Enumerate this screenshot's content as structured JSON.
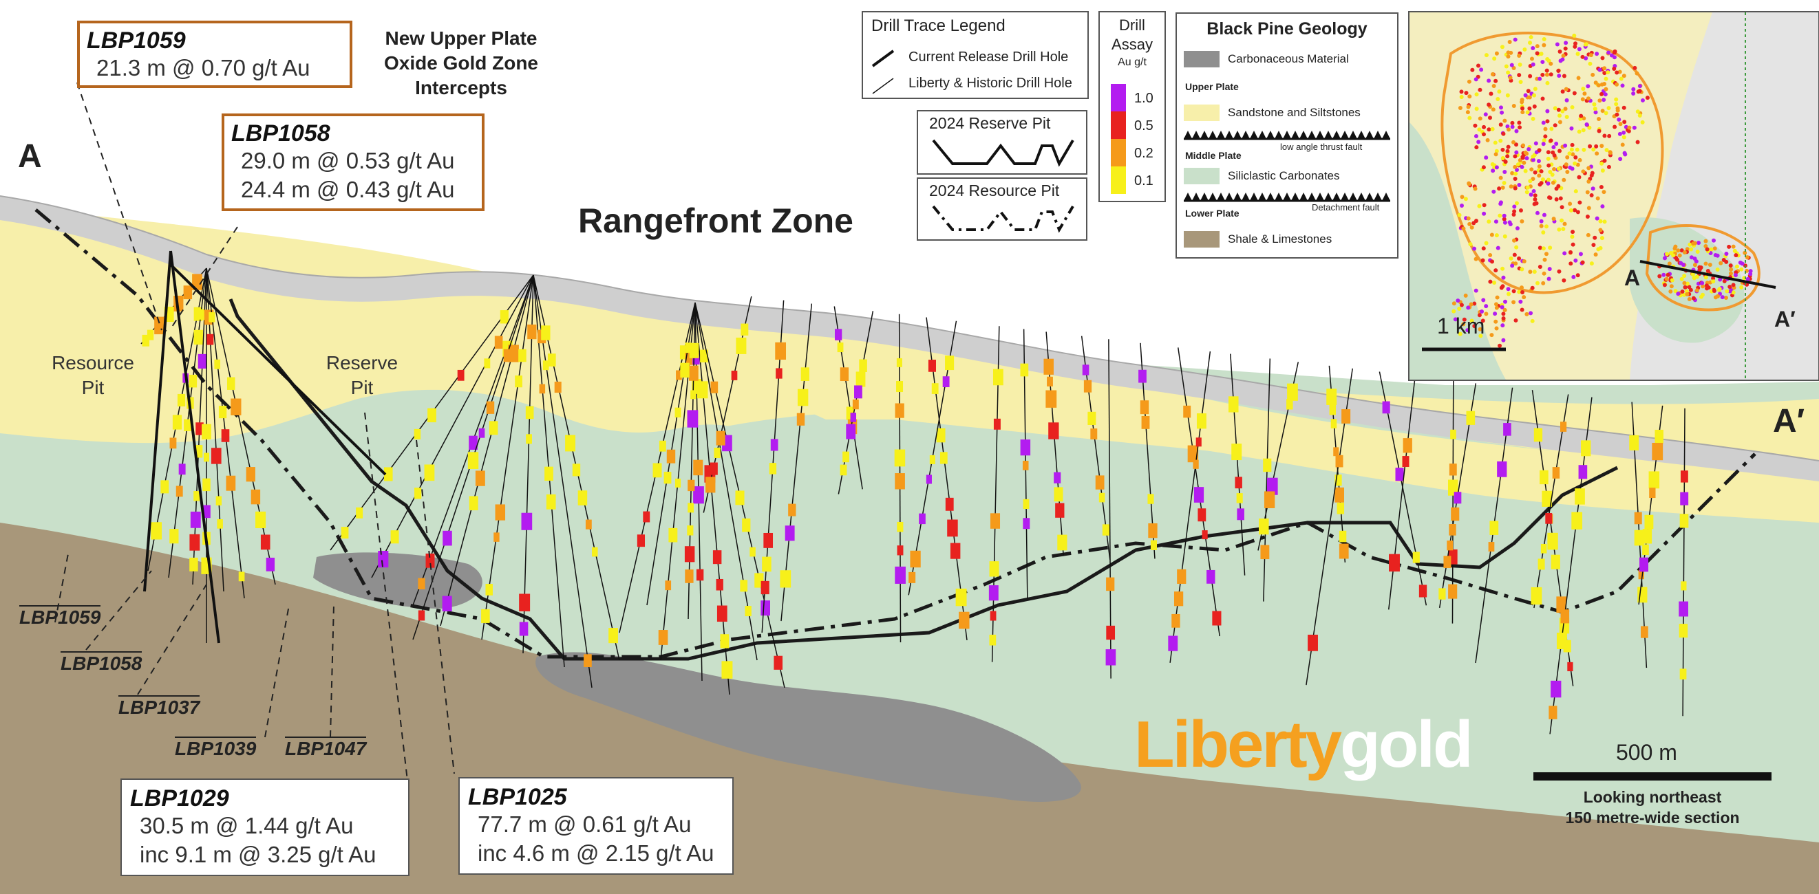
{
  "section": {
    "title": "Rangefront Zone",
    "end_left": "A",
    "end_right": "A′",
    "resource_pit_label": "Resource Pit",
    "reserve_pit_label": "Reserve Pit",
    "heading_intercepts": "New Upper Plate Oxide Gold Zone Intercepts"
  },
  "callouts": [
    {
      "hole": "LBP1059",
      "lines": [
        "21.3 m @ 0.70 g/t Au"
      ]
    },
    {
      "hole": "LBP1058",
      "lines": [
        "29.0 m @ 0.53 g/t Au",
        "24.4 m @ 0.43 g/t Au"
      ]
    },
    {
      "hole": "LBP1029",
      "lines": [
        "30.5 m @ 1.44 g/t Au",
        "inc 9.1 m @ 3.25 g/t Au"
      ]
    },
    {
      "hole": "LBP1025",
      "lines": [
        "77.7 m @ 0.61 g/t Au",
        "inc 4.6 m @ 2.15 g/t Au"
      ]
    }
  ],
  "hole_labels": [
    "LBP1059",
    "LBP1058",
    "LBP1037",
    "LBP1039",
    "LBP1047"
  ],
  "drill_trace_legend": {
    "title": "Drill Trace Legend",
    "items": [
      "Current Release Drill Hole",
      "Liberty & Historic Drill Hole"
    ]
  },
  "pit_legend": {
    "reserve": "2024 Reserve Pit",
    "resource": "2024 Resource Pit"
  },
  "assay_legend": {
    "title_1": "Drill",
    "title_2": "Assay",
    "unit": "Au g/t",
    "bins": [
      {
        "label": "1.0",
        "color": "#b31cf0"
      },
      {
        "label": "0.5",
        "color": "#e8221f"
      },
      {
        "label": "0.2",
        "color": "#f59a1a"
      },
      {
        "label": "0.1",
        "color": "#f7f01a"
      }
    ]
  },
  "geology_legend": {
    "title": "Black Pine Geology",
    "carbonaceous": "Carbonaceous Material",
    "upper_plate": "Upper Plate",
    "sandstone": "Sandstone and Siltstones",
    "low_angle_fault": "low angle thrust fault",
    "middle_plate": "Middle Plate",
    "siliclastic": "Siliclastic Carbonates",
    "detachment_fault": "Detachment fault",
    "lower_plate": "Lower Plate",
    "shale": "Shale & Limestones",
    "colors": {
      "carbonaceous": "#8f8f8f",
      "sandstone": "#f7efaa",
      "siliclastic": "#c9e0ca",
      "shale": "#a8977a"
    }
  },
  "inset_map": {
    "label_a": "A",
    "label_a_prime": "A′",
    "scale": "1 km"
  },
  "scale_bar": {
    "label": "500 m",
    "note_1": "Looking northeast",
    "note_2": "150 metre-wide section"
  },
  "logo": {
    "part_1": "Liberty",
    "part_2": "gold"
  },
  "colors": {
    "callout_border": "#b5651d",
    "logo_orange": "#f5a01f",
    "upper_plate": "#f7efaa",
    "middle_plate": "#c9e0ca",
    "lower_plate": "#a8977a",
    "carbonaceous": "#8f8f8f"
  }
}
